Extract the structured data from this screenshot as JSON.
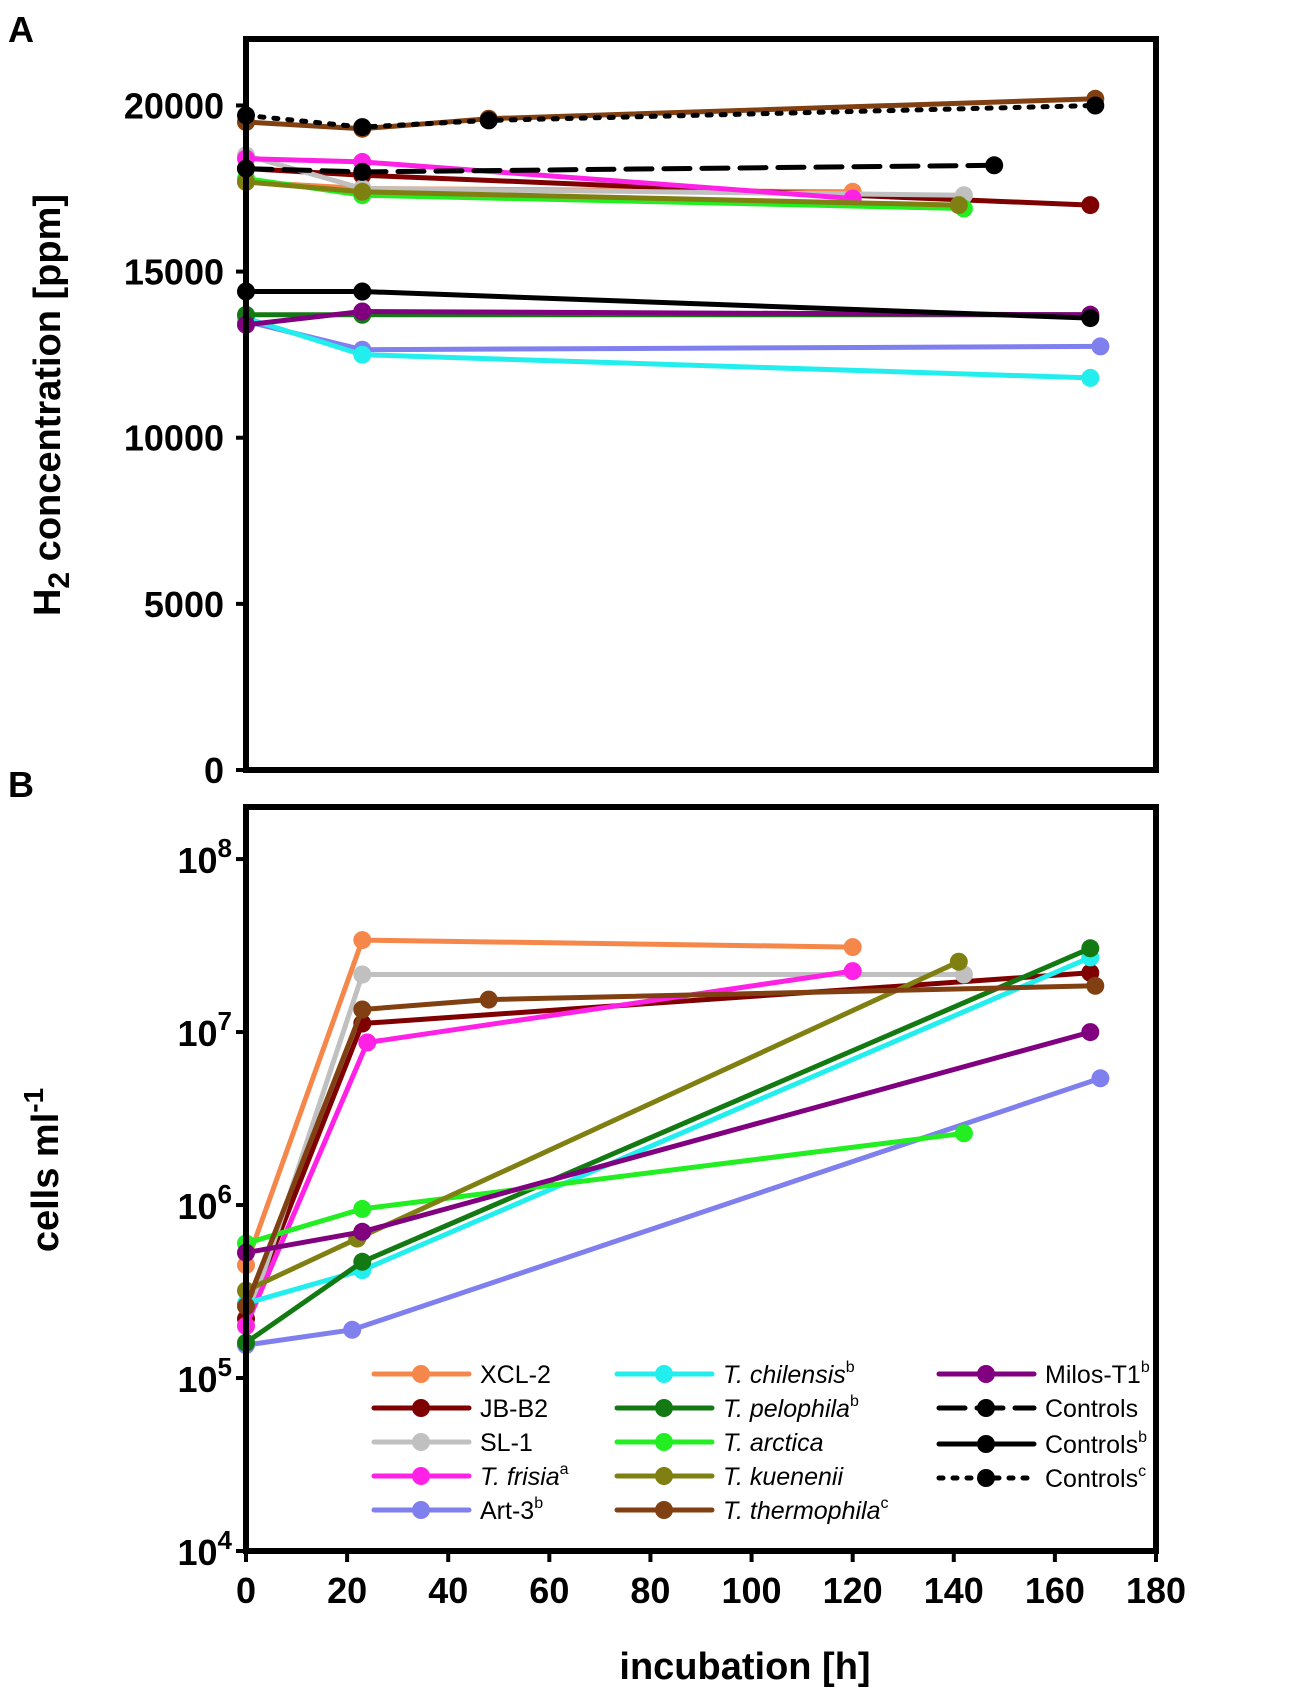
{
  "panel_labels": {
    "a": "A",
    "b": "B"
  },
  "chart_data": [
    {
      "type": "line",
      "panel": "A",
      "ylabel": "H2 concentration [ppm]",
      "ylabel_main": "H",
      "ylabel_sub": "2",
      "ylabel_rest": " concentration [ppm]",
      "ylim": [
        0,
        22000
      ],
      "xlim": [
        0,
        180
      ],
      "yticks": [
        "0",
        "5000",
        "10000",
        "15000",
        "20000"
      ],
      "ytick_values": [
        0,
        5000,
        10000,
        15000,
        20000
      ],
      "series": [
        {
          "name": "XCL-2",
          "color": "#F5874A",
          "dash": "solid",
          "x": [
            0,
            23,
            120
          ],
          "y": [
            17700,
            17500,
            17400
          ]
        },
        {
          "name": "JB-B2",
          "color": "#7F0000",
          "dash": "solid",
          "x": [
            0,
            23,
            167
          ],
          "y": [
            18100,
            17900,
            17000
          ]
        },
        {
          "name": "SL-1",
          "color": "#C0C0C0",
          "dash": "solid",
          "x": [
            0,
            23,
            142
          ],
          "y": [
            18500,
            17500,
            17300
          ]
        },
        {
          "name": "T. frisia",
          "color": "#FF22E6",
          "dash": "solid",
          "x": [
            0,
            23,
            120
          ],
          "y": [
            18400,
            18300,
            17200
          ]
        },
        {
          "name": "Art-3",
          "color": "#7F7FEE",
          "dash": "solid",
          "x": [
            0,
            23,
            169
          ],
          "y": [
            13500,
            12650,
            12750
          ]
        },
        {
          "name": "T. chilensis",
          "color": "#22EEEE",
          "dash": "solid",
          "x": [
            0,
            23,
            167
          ],
          "y": [
            13600,
            12500,
            11800
          ]
        },
        {
          "name": "T. pelophila",
          "color": "#137A13",
          "dash": "solid",
          "x": [
            0,
            23,
            167
          ],
          "y": [
            13700,
            13700,
            13700
          ]
        },
        {
          "name": "T. arctica",
          "color": "#22EE22",
          "dash": "solid",
          "x": [
            0,
            23,
            142
          ],
          "y": [
            17800,
            17300,
            16900
          ]
        },
        {
          "name": "T. kuenenii",
          "color": "#808012",
          "dash": "solid",
          "x": [
            0,
            23,
            141
          ],
          "y": [
            17700,
            17400,
            17000
          ]
        },
        {
          "name": "T. thermophila",
          "color": "#804012",
          "dash": "solid",
          "x": [
            0,
            23,
            48,
            168
          ],
          "y": [
            19500,
            19300,
            19600,
            20200
          ]
        },
        {
          "name": "Milos-T1",
          "color": "#800080",
          "dash": "solid",
          "x": [
            0,
            23,
            167
          ],
          "y": [
            13400,
            13800,
            13700
          ]
        },
        {
          "name": "Controls",
          "color": "#000000",
          "dash": "dashed",
          "x": [
            0,
            23,
            148
          ],
          "y": [
            18100,
            18000,
            18200
          ]
        },
        {
          "name": "Controls b",
          "color": "#000000",
          "dash": "solid",
          "x": [
            0,
            23,
            167
          ],
          "y": [
            14400,
            14400,
            13600
          ]
        },
        {
          "name": "Controls c",
          "color": "#000000",
          "dash": "dotted",
          "x": [
            0,
            23,
            48,
            168
          ],
          "y": [
            19700,
            19350,
            19550,
            20000
          ]
        }
      ]
    },
    {
      "type": "line",
      "panel": "B",
      "ylabel": "cells ml-1",
      "ylabel_main": "cells ml",
      "ylabel_sup": "-1",
      "xlabel": "incubation [h]",
      "yscale": "log",
      "ylim": [
        10000,
        200000000
      ],
      "xlim": [
        0,
        180
      ],
      "xticks": [
        "0",
        "20",
        "40",
        "60",
        "80",
        "100",
        "120",
        "140",
        "160",
        "180"
      ],
      "xtick_values": [
        0,
        20,
        40,
        60,
        80,
        100,
        120,
        140,
        160,
        180
      ],
      "ytick_base": "10",
      "ytick_exps": [
        "4",
        "5",
        "6",
        "7",
        "8"
      ],
      "ytick_values": [
        10000,
        100000,
        1000000,
        10000000,
        100000000
      ],
      "series": [
        {
          "name": "XCL-2",
          "color": "#F5874A",
          "dash": "solid",
          "x": [
            0,
            23,
            120
          ],
          "y": [
            450000,
            34000000,
            31000000
          ]
        },
        {
          "name": "JB-B2",
          "color": "#7F0000",
          "dash": "solid",
          "x": [
            0,
            23,
            167
          ],
          "y": [
            220000,
            11200000,
            22000000
          ]
        },
        {
          "name": "SL-1",
          "color": "#C0C0C0",
          "dash": "solid",
          "x": [
            0,
            23,
            142
          ],
          "y": [
            200000,
            21500000,
            21500000
          ]
        },
        {
          "name": "T. frisia",
          "color": "#FF22E6",
          "dash": "solid",
          "x": [
            0,
            24,
            120
          ],
          "y": [
            200000,
            8700000,
            22500000
          ]
        },
        {
          "name": "Art-3",
          "color": "#7F7FEE",
          "dash": "solid",
          "x": [
            0,
            21,
            169
          ],
          "y": [
            155000,
            190000,
            5400000
          ]
        },
        {
          "name": "T. chilensis",
          "color": "#22EEEE",
          "dash": "solid",
          "x": [
            0,
            23,
            167
          ],
          "y": [
            270000,
            420000,
            27000000
          ]
        },
        {
          "name": "T. pelophila",
          "color": "#137A13",
          "dash": "solid",
          "x": [
            0,
            23,
            167
          ],
          "y": [
            160000,
            470000,
            30500000
          ]
        },
        {
          "name": "T. arctica",
          "color": "#22EE22",
          "dash": "solid",
          "x": [
            0,
            23,
            142
          ],
          "y": [
            600000,
            950000,
            2600000
          ]
        },
        {
          "name": "T. kuenenii",
          "color": "#808012",
          "dash": "solid",
          "x": [
            0,
            22,
            141
          ],
          "y": [
            320000,
            640000,
            25500000
          ]
        },
        {
          "name": "T. thermophila",
          "color": "#804012",
          "dash": "solid",
          "x": [
            0,
            23,
            48,
            168
          ],
          "y": [
            260000,
            13500000,
            15400000,
            18500000
          ]
        },
        {
          "name": "Milos-T1",
          "color": "#800080",
          "dash": "solid",
          "x": [
            0,
            23,
            167
          ],
          "y": [
            530000,
            700000,
            10000000
          ]
        }
      ]
    }
  ],
  "legend": {
    "entries": [
      {
        "label": "XCL-2",
        "italic": false,
        "sup": "",
        "color": "#F5874A",
        "dash": "solid"
      },
      {
        "label": "JB-B2",
        "italic": false,
        "sup": "",
        "color": "#7F0000",
        "dash": "solid"
      },
      {
        "label": "SL-1",
        "italic": false,
        "sup": "",
        "color": "#C0C0C0",
        "dash": "solid"
      },
      {
        "label": "T. frisia",
        "italic": true,
        "sup": "a",
        "color": "#FF22E6",
        "dash": "solid"
      },
      {
        "label": "Art-3",
        "italic": false,
        "sup": "b",
        "color": "#7F7FEE",
        "dash": "solid"
      },
      {
        "label": "T. chilensis",
        "italic": true,
        "sup": "b",
        "color": "#22EEEE",
        "dash": "solid"
      },
      {
        "label": "T. pelophila",
        "italic": true,
        "sup": "b",
        "color": "#137A13",
        "dash": "solid"
      },
      {
        "label": "T. arctica",
        "italic": true,
        "sup": "",
        "color": "#22EE22",
        "dash": "solid"
      },
      {
        "label": "T. kuenenii",
        "italic": true,
        "sup": "",
        "color": "#808012",
        "dash": "solid"
      },
      {
        "label": "T. thermophila",
        "italic": true,
        "sup": "c",
        "color": "#804012",
        "dash": "solid"
      },
      {
        "label": "Milos-T1",
        "italic": false,
        "sup": "b",
        "color": "#800080",
        "dash": "solid"
      },
      {
        "label": "Controls",
        "italic": false,
        "sup": "",
        "color": "#000000",
        "dash": "dashed"
      },
      {
        "label": "Controls",
        "italic": false,
        "sup": "b",
        "color": "#000000",
        "dash": "solid"
      },
      {
        "label": "Controls",
        "italic": false,
        "sup": "c",
        "color": "#000000",
        "dash": "dotted"
      }
    ]
  }
}
